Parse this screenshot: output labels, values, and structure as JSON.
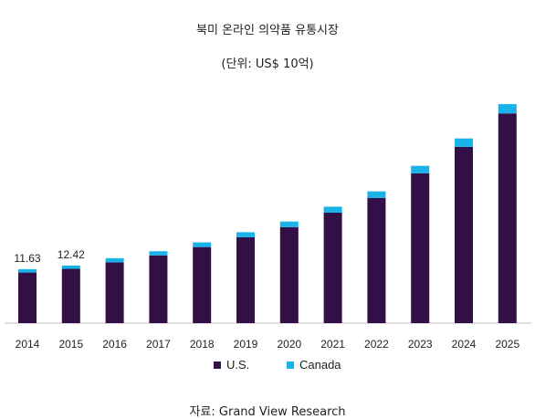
{
  "chart_data": {
    "type": "bar",
    "stacked": true,
    "title": "북미 온라인 의약품 유통시장",
    "subtitle": "(단위: US$ 10억)",
    "categories": [
      "2014",
      "2015",
      "2016",
      "2017",
      "2018",
      "2019",
      "2020",
      "2021",
      "2022",
      "2023",
      "2024",
      "2025"
    ],
    "series": [
      {
        "name": "U.S.",
        "color": "#330f48",
        "values": [
          10.9,
          11.7,
          13.1,
          14.6,
          16.4,
          18.5,
          20.7,
          23.8,
          27.0,
          32.3,
          38.0,
          45.2
        ]
      },
      {
        "name": "Canada",
        "color": "#19b3ea",
        "values": [
          0.73,
          0.72,
          0.9,
          0.9,
          1.0,
          1.1,
          1.2,
          1.3,
          1.4,
          1.6,
          1.8,
          2.0
        ]
      }
    ],
    "data_labels": [
      {
        "category": "2014",
        "text": "11.63"
      },
      {
        "category": "2015",
        "text": "12.42"
      }
    ],
    "ylim": [
      0,
      48
    ],
    "grid": false,
    "legend": "bottom"
  },
  "source": "자료: Grand View Research"
}
